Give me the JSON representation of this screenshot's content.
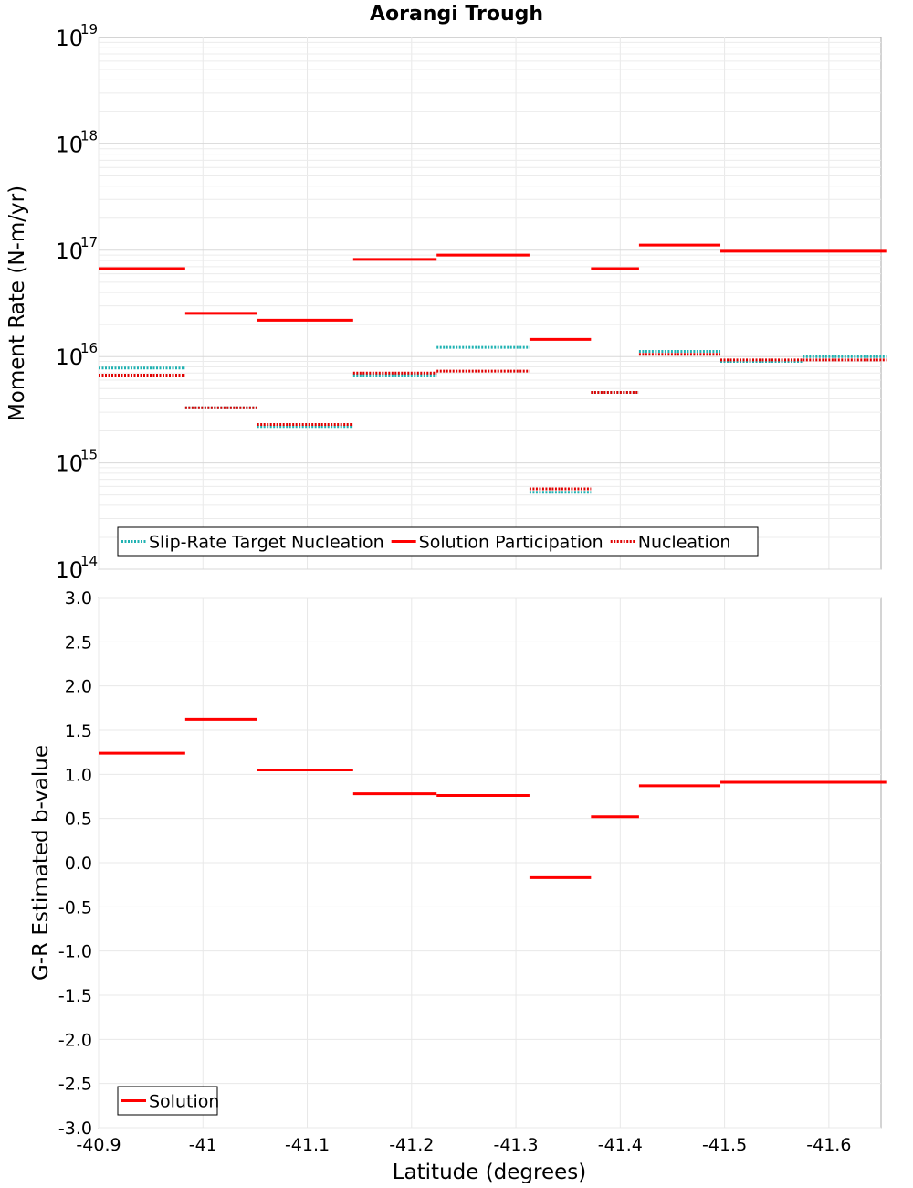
{
  "chart_data": [
    {
      "type": "line",
      "title": "Aorangi Trough",
      "ylabel": "Moment Rate (N-m/yr)",
      "yscale": "log",
      "ylim": [
        100000000000000.0,
        1e+19
      ],
      "xlim": [
        -40.9,
        -41.65
      ],
      "x_reversed": true,
      "y_ticks": [
        {
          "base": "10",
          "exp": "14"
        },
        {
          "base": "10",
          "exp": "15"
        },
        {
          "base": "10",
          "exp": "16"
        },
        {
          "base": "10",
          "exp": "17"
        },
        {
          "base": "10",
          "exp": "18"
        },
        {
          "base": "10",
          "exp": "19"
        }
      ],
      "grid": true,
      "legend_position": "bottom-left",
      "sections": [
        [
          -40.9,
          -40.983
        ],
        [
          -40.983,
          -41.052
        ],
        [
          -41.052,
          -41.144
        ],
        [
          -41.144,
          -41.224
        ],
        [
          -41.224,
          -41.313
        ],
        [
          -41.313,
          -41.372
        ],
        [
          -41.372,
          -41.418
        ],
        [
          -41.418,
          -41.496
        ],
        [
          -41.496,
          -41.575
        ],
        [
          -41.575,
          -41.655
        ]
      ],
      "series": [
        {
          "name": "Slip-Rate Target Nucleation",
          "color": "#1fb2b2",
          "style": "dotted",
          "values": [
            7800000000000000.0,
            3300000000000000.0,
            2200000000000000.0,
            6700000000000000.0,
            1.22e+16,
            530000000000000.0,
            4600000000000000.0,
            1.12e+16,
            9000000000000000.0,
            1e+16
          ]
        },
        {
          "name": "Solution Participation",
          "color": "#ff0000",
          "style": "solid",
          "values": [
            6.7e+16,
            2.55e+16,
            2.2e+16,
            8.2e+16,
            9e+16,
            1.45e+16,
            6.7e+16,
            1.12e+17,
            9.8e+16,
            9.8e+16
          ]
        },
        {
          "name": "Nucleation",
          "color": "#e00000",
          "style": "dotted",
          "values": [
            6700000000000000.0,
            3300000000000000.0,
            2300000000000000.0,
            7000000000000000.0,
            7300000000000000.0,
            570000000000000.0,
            4600000000000000.0,
            1.05e+16,
            9300000000000000.0,
            9300000000000000.0
          ]
        }
      ]
    },
    {
      "type": "line",
      "xlabel": "Latitude (degrees)",
      "ylabel": "G-R Estimated b-value",
      "ylim": [
        -3.0,
        3.0
      ],
      "y_ticks": [
        "-3.0",
        "-2.5",
        "-2.0",
        "-1.5",
        "-1.0",
        "-0.5",
        "0.0",
        "0.5",
        "1.0",
        "1.5",
        "2.0",
        "2.5",
        "3.0"
      ],
      "x_ticks": [
        "-40.9",
        "-41",
        "-41.1",
        "-41.2",
        "-41.3",
        "-41.4",
        "-41.5",
        "-41.6"
      ],
      "grid": true,
      "legend_position": "bottom-left",
      "series": [
        {
          "name": "Solution",
          "color": "#ff0000",
          "style": "solid",
          "values": [
            1.24,
            1.62,
            1.05,
            0.78,
            0.76,
            -0.17,
            0.52,
            0.87,
            0.91,
            0.91
          ]
        }
      ]
    }
  ]
}
